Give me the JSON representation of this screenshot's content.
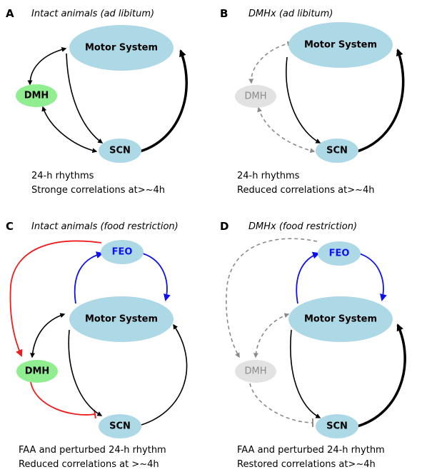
{
  "colors": {
    "node_blue": "#add8e6",
    "node_green": "#90ee90",
    "node_gray": "#e2e2e2",
    "edge_black": "#000000",
    "edge_gray": "#8a8a8a",
    "edge_red": "#ee1c1c",
    "edge_blue": "#1010ee",
    "text_blue": "#1010ee",
    "text_gray": "#8a8a8a"
  },
  "panels": [
    {
      "id": "A",
      "letter": "A",
      "title": "Intact animals (ad libitum)",
      "nodes": {
        "motor": "Motor System",
        "dmh": "DMH",
        "scn": "SCN"
      },
      "caption": [
        "24-h rhythms",
        "Stronge correlations at>~4h"
      ]
    },
    {
      "id": "B",
      "letter": "B",
      "title": "DMHx (ad libitum)",
      "nodes": {
        "motor": "Motor System",
        "dmh": "DMH",
        "scn": "SCN"
      },
      "caption": [
        "24-h rhythms",
        "Reduced correlations at>~4h"
      ]
    },
    {
      "id": "C",
      "letter": "C",
      "title": "Intact animals (food restriction)",
      "nodes": {
        "feo": "FEO",
        "motor": "Motor System",
        "dmh": "DMH",
        "scn": "SCN"
      },
      "caption": [
        "FAA and perturbed 24-h rhythm",
        "Reduced correlations at >~4h"
      ]
    },
    {
      "id": "D",
      "letter": "D",
      "title": "DMHx (food restriction)",
      "nodes": {
        "feo": "FEO",
        "motor": "Motor System",
        "dmh": "DMH",
        "scn": "SCN"
      },
      "caption": [
        "FAA and perturbed 24-h rhythm",
        "Restored correlations at>~4h"
      ]
    }
  ]
}
